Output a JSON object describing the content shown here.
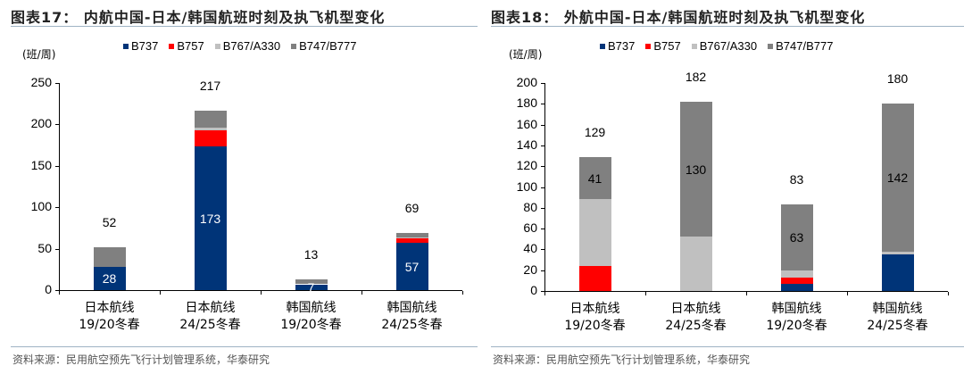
{
  "colors": {
    "B737": "#003478",
    "B757": "#ff0000",
    "B767/A330": "#c0c0c0",
    "B747/B777": "#808080"
  },
  "charts": [
    {
      "title": "图表17：  内航中国-日本/韩国航班时刻及执飞机型变化",
      "unit": "(班/周)",
      "legend": [
        "B737",
        "B757",
        "B767/A330",
        "B747/B777"
      ],
      "yticks": [
        "0",
        "50",
        "100",
        "150",
        "200",
        "250"
      ],
      "categories": [
        {
          "line1": "日本航线",
          "line2": "19/20冬春"
        },
        {
          "line1": "日本航线",
          "line2": "24/25冬春"
        },
        {
          "line1": "韩国航线",
          "line2": "19/20冬春"
        },
        {
          "line1": "韩国航线",
          "line2": "24/25冬春"
        }
      ],
      "totals": [
        "52",
        "217",
        "13",
        "69"
      ],
      "segment_labels": [
        "28",
        "173",
        "7",
        "57"
      ],
      "source": "资料来源：民用航空预先飞行计划管理系统，华泰研究"
    },
    {
      "title": "图表18：  外航中国-日本/韩国航班时刻及执飞机型变化",
      "unit": "(班/周)",
      "legend": [
        "B737",
        "B757",
        "B767/A330",
        "B747/B777"
      ],
      "yticks": [
        "0",
        "20",
        "40",
        "60",
        "80",
        "100",
        "120",
        "140",
        "160",
        "180",
        "200"
      ],
      "categories": [
        {
          "line1": "日本航线",
          "line2": "19/20冬春"
        },
        {
          "line1": "日本航线",
          "line2": "24/25冬春"
        },
        {
          "line1": "韩国航线",
          "line2": "19/20冬春"
        },
        {
          "line1": "韩国航线",
          "line2": "24/25冬春"
        }
      ],
      "totals": [
        "129",
        "182",
        "83",
        "180"
      ],
      "segment_labels": [
        "41",
        "130",
        "63",
        "142"
      ],
      "source": "资料来源：民用航空预先飞行计划管理系统，华泰研究"
    }
  ],
  "chart_data": [
    {
      "type": "bar",
      "stacked": true,
      "title": "图表17：内航中国-日本/韩国航班时刻及执飞机型变化",
      "ylabel": "(班/周)",
      "ylim": [
        0,
        250
      ],
      "categories": [
        "日本航线 19/20冬春",
        "日本航线 24/25冬春",
        "韩国航线 19/20冬春",
        "韩国航线 24/25冬春"
      ],
      "series": [
        {
          "name": "B737",
          "values": [
            28,
            173,
            7,
            57
          ]
        },
        {
          "name": "B757",
          "values": [
            0,
            20,
            0,
            6
          ]
        },
        {
          "name": "B767/A330",
          "values": [
            0,
            3,
            0,
            1
          ]
        },
        {
          "name": "B747/B777",
          "values": [
            24,
            21,
            6,
            5
          ]
        }
      ],
      "totals": [
        52,
        217,
        13,
        69
      ],
      "legend_position": "top"
    },
    {
      "type": "bar",
      "stacked": true,
      "title": "图表18：外航中国-日本/韩国航班时刻及执飞机型变化",
      "ylabel": "(班/周)",
      "ylim": [
        0,
        200
      ],
      "categories": [
        "日本航线 19/20冬春",
        "日本航线 24/25冬春",
        "韩国航线 19/20冬春",
        "韩国航线 24/25冬春"
      ],
      "series": [
        {
          "name": "B737",
          "values": [
            0,
            0,
            7,
            35
          ]
        },
        {
          "name": "B757",
          "values": [
            24,
            0,
            6,
            0
          ]
        },
        {
          "name": "B767/A330",
          "values": [
            64,
            52,
            7,
            3
          ]
        },
        {
          "name": "B747/B777",
          "values": [
            41,
            130,
            63,
            142
          ]
        }
      ],
      "totals": [
        129,
        182,
        83,
        180
      ],
      "legend_position": "top"
    }
  ]
}
